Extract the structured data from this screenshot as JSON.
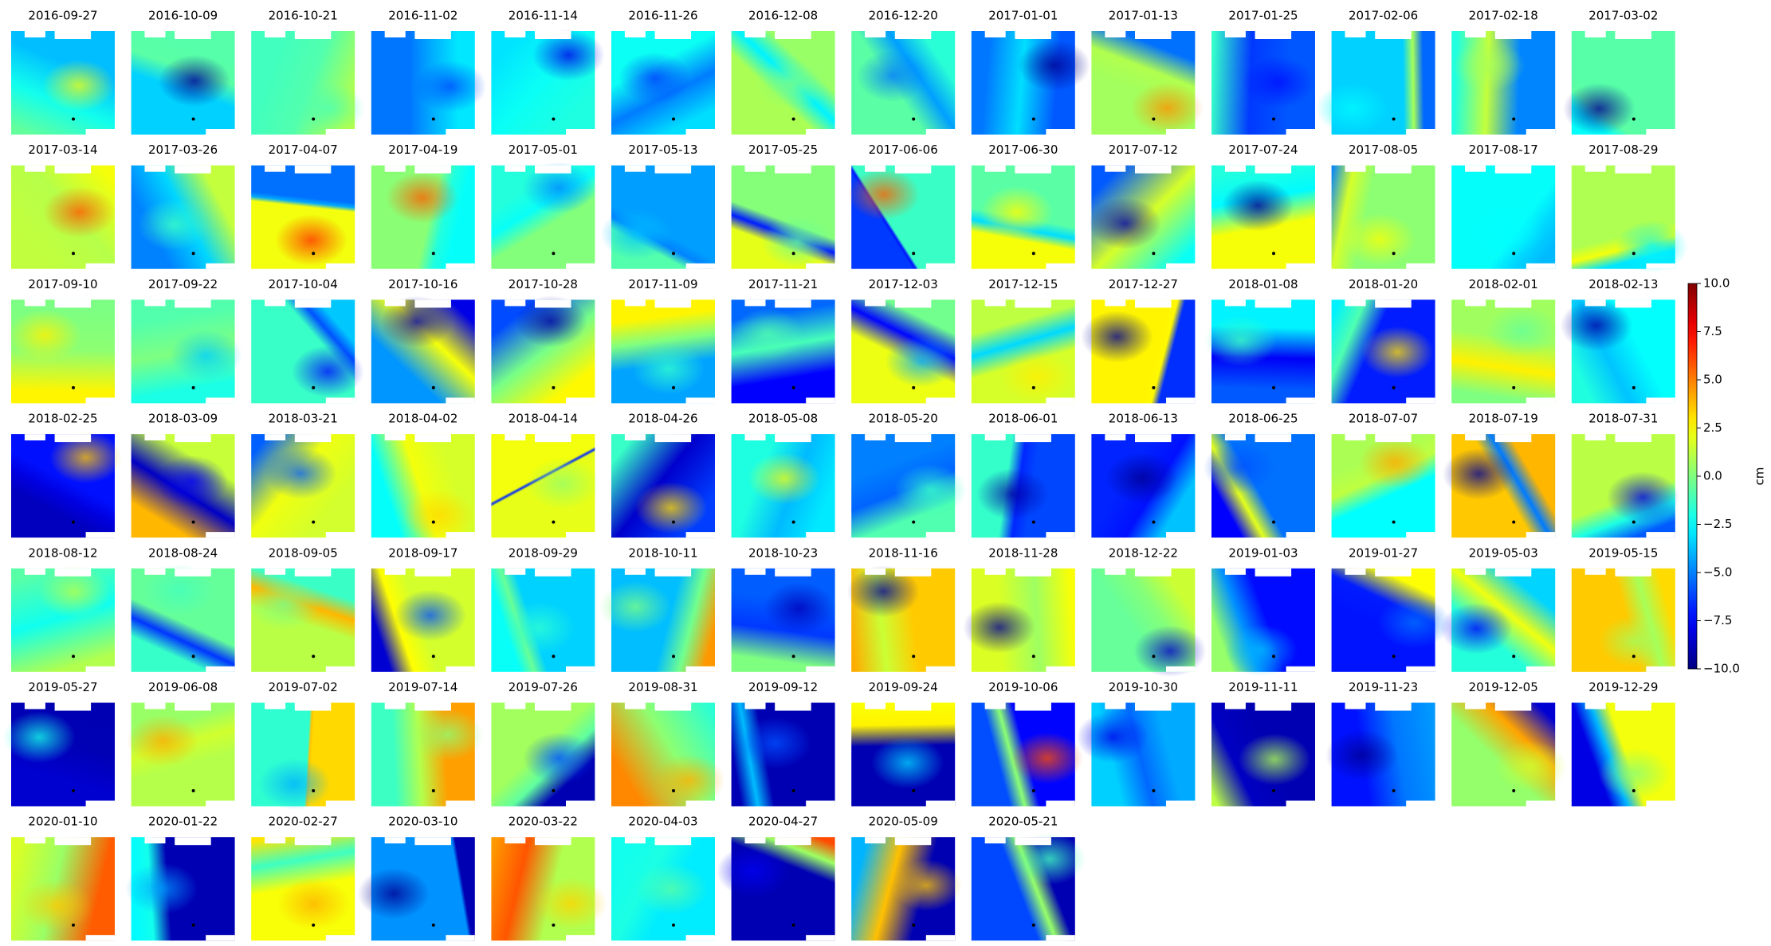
{
  "chart_data": {
    "type": "image-grid",
    "columns": 14,
    "colormap": "jet",
    "panels": [
      "2016-09-27",
      "2016-10-09",
      "2016-10-21",
      "2016-11-02",
      "2016-11-14",
      "2016-11-26",
      "2016-12-08",
      "2016-12-20",
      "2017-01-01",
      "2017-01-13",
      "2017-01-25",
      "2017-02-06",
      "2017-02-18",
      "2017-03-02",
      "2017-03-14",
      "2017-03-26",
      "2017-04-07",
      "2017-04-19",
      "2017-05-01",
      "2017-05-13",
      "2017-05-25",
      "2017-06-06",
      "2017-06-30",
      "2017-07-12",
      "2017-07-24",
      "2017-08-05",
      "2017-08-17",
      "2017-08-29",
      "2017-09-10",
      "2017-09-22",
      "2017-10-04",
      "2017-10-16",
      "2017-10-28",
      "2017-11-09",
      "2017-11-21",
      "2017-12-03",
      "2017-12-15",
      "2017-12-27",
      "2018-01-08",
      "2018-01-20",
      "2018-02-01",
      "2018-02-13",
      "2018-02-25",
      "2018-03-09",
      "2018-03-21",
      "2018-04-02",
      "2018-04-14",
      "2018-04-26",
      "2018-05-08",
      "2018-05-20",
      "2018-06-01",
      "2018-06-13",
      "2018-06-25",
      "2018-07-07",
      "2018-07-19",
      "2018-07-31",
      "2018-08-12",
      "2018-08-24",
      "2018-09-05",
      "2018-09-17",
      "2018-09-29",
      "2018-10-11",
      "2018-10-23",
      "2018-11-16",
      "2018-11-28",
      "2018-12-22",
      "2019-01-03",
      "2019-01-27",
      "2019-05-03",
      "2019-05-15",
      "2019-05-27",
      "2019-06-08",
      "2019-07-02",
      "2019-07-14",
      "2019-07-26",
      "2019-08-31",
      "2019-09-12",
      "2019-09-24",
      "2019-10-06",
      "2019-10-30",
      "2019-11-11",
      "2019-11-23",
      "2019-12-05",
      "2019-12-29",
      "2020-01-10",
      "2020-01-22",
      "2020-02-27",
      "2020-03-10",
      "2020-03-22",
      "2020-04-03",
      "2020-04-27",
      "2020-05-09",
      "2020-05-21"
    ],
    "colorbar": {
      "label": "cm",
      "lim": [
        -10,
        10
      ],
      "ticks": [
        {
          "value": -10,
          "label": "−10.0"
        },
        {
          "value": -7.5,
          "label": "−7.5"
        },
        {
          "value": -5,
          "label": "−5.0"
        },
        {
          "value": -2.5,
          "label": "−2.5"
        },
        {
          "value": 0,
          "label": "0.0"
        },
        {
          "value": 2.5,
          "label": "2.5"
        },
        {
          "value": 5,
          "label": "5.0"
        },
        {
          "value": 7.5,
          "label": "7.5"
        },
        {
          "value": 10,
          "label": "10.0"
        }
      ]
    }
  }
}
